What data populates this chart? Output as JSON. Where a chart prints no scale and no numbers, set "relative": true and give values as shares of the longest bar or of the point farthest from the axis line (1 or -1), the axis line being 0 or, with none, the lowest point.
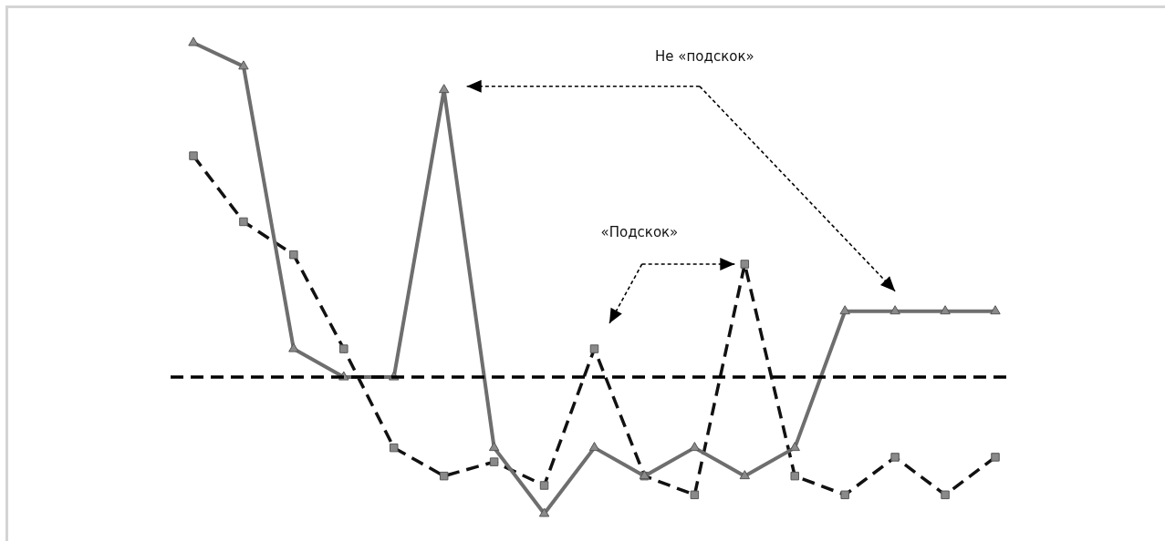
{
  "chart_data": {
    "type": "line",
    "relative": true,
    "categories": [
      null,
      null,
      null,
      null,
      null,
      null,
      null,
      null,
      null,
      null,
      null,
      null,
      null,
      null,
      null,
      null,
      null
    ],
    "series": [
      {
        "color": "#6e6e6e",
        "line_style": "solid",
        "marker": "triangle",
        "values": [
          1,
          0.95,
          0.35,
          0.29,
          0.29,
          0.9,
          0.14,
          0,
          0.14,
          0.08,
          0.14,
          0.08,
          0.14,
          0.43,
          0.43,
          0.43,
          0.43
        ]
      },
      {
        "color": "#111111",
        "line_style": "dashed",
        "marker": "square",
        "values": [
          0.76,
          0.62,
          0.55,
          0.35,
          0.14,
          0.08,
          0.11,
          0.06,
          0.35,
          0.08,
          0.04,
          0.53,
          0.08,
          0.04,
          0.12,
          0.04,
          0.12
        ]
      }
    ],
    "ref_lines": [
      {
        "axis": "y",
        "value": 0.29,
        "color": "#000000",
        "line_style": "dashed"
      }
    ],
    "annotations": [
      "Не «подскок»",
      "«Подскок»"
    ],
    "legend": false
  }
}
